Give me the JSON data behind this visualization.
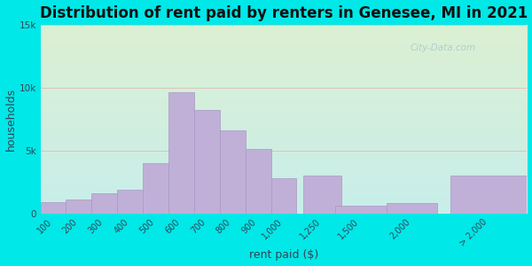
{
  "title": "Distribution of rent paid by renters in Genesee, MI in 2021",
  "xlabel": "rent paid ($)",
  "ylabel": "households",
  "bar_labels": [
    "100",
    "200",
    "300",
    "400",
    "500",
    "600",
    "700",
    "800",
    "900",
    "1,000",
    "1,250",
    "1,500",
    "2,000",
    "> 2,000"
  ],
  "bar_positions": [
    0,
    1,
    2,
    3,
    4,
    5,
    6,
    7,
    8,
    9,
    10.5,
    12,
    14,
    17
  ],
  "bar_widths": [
    1,
    1,
    1,
    1,
    1,
    1,
    1,
    1,
    1,
    1,
    1.5,
    2,
    2,
    3
  ],
  "values": [
    900,
    1100,
    1600,
    1900,
    4000,
    9600,
    8200,
    6600,
    5100,
    2800,
    3000,
    600,
    800,
    3000
  ],
  "bar_color": "#c0b0d8",
  "bar_edge_color": "#a898c0",
  "background_outer": "#00e8e8",
  "ylim": [
    0,
    15000
  ],
  "yticks": [
    0,
    5000,
    10000,
    15000
  ],
  "ytick_labels": [
    "0",
    "5k",
    "10k",
    "15k"
  ],
  "title_fontsize": 12,
  "axis_label_fontsize": 9,
  "tick_label_fontsize": 7,
  "watermark": "City-Data.com"
}
